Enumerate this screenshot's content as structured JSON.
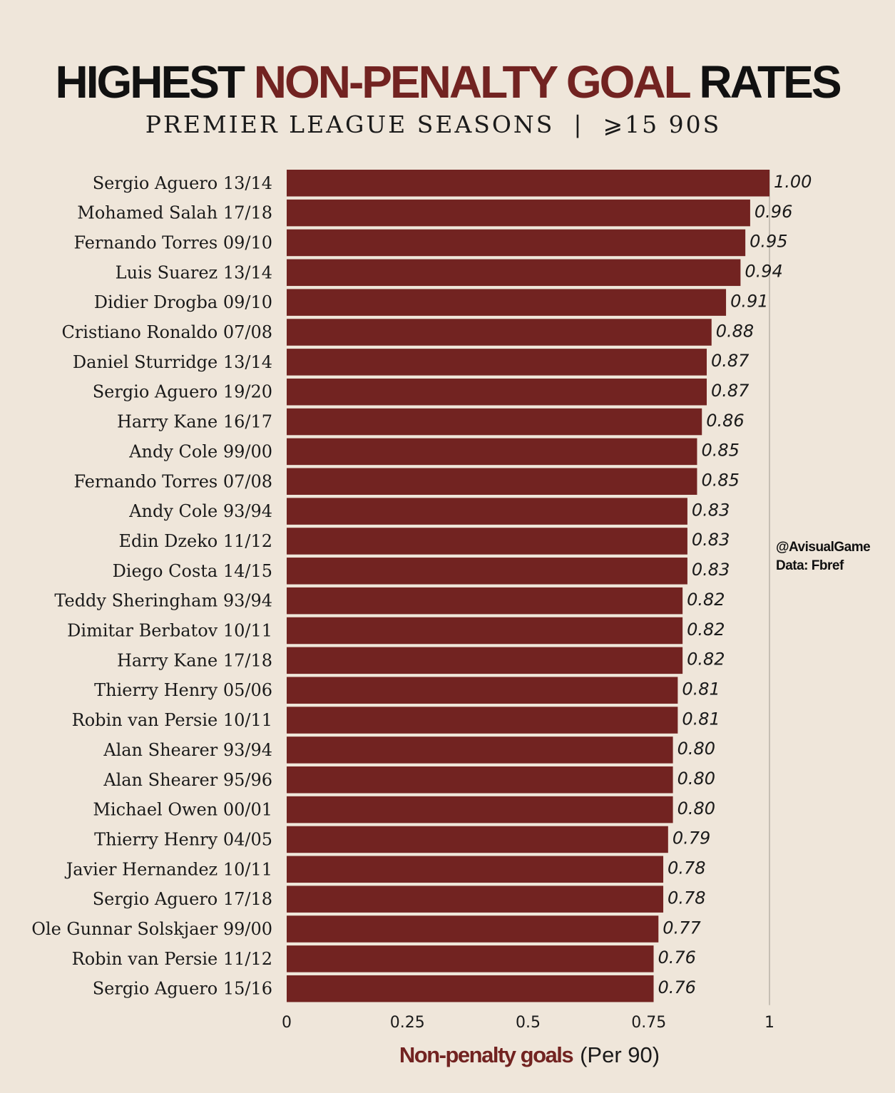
{
  "header": {
    "title_part1": "HIGHEST",
    "title_part2": "NON-PENALTY GOAL",
    "title_part3": "RATES",
    "subtitle": "PREMIER LEAGUE SEASONS  |  ⩾15 90S"
  },
  "credit": {
    "handle": "@AvisualGame",
    "source": "Data: Fbref"
  },
  "axis": {
    "xlabel_main": "Non-penalty goals",
    "xlabel_unit": "(Per 90)"
  },
  "colors": {
    "bar": "#722321",
    "accent": "#722321",
    "background": "#efe6da"
  },
  "chart_data": {
    "type": "bar",
    "orientation": "horizontal",
    "title": "HIGHEST NON-PENALTY GOAL RATES",
    "subtitle": "PREMIER LEAGUE SEASONS | ⩾15 90S",
    "xlabel": "Non-penalty goals (Per 90)",
    "ylabel": "",
    "xlim": [
      0,
      1
    ],
    "xticks": [
      "0",
      "0.25",
      "0.5",
      "0.75",
      "1"
    ],
    "xtick_values": [
      0,
      0.25,
      0.5,
      0.75,
      1
    ],
    "categories": [
      "Sergio Aguero 13/14",
      "Mohamed Salah 17/18",
      "Fernando Torres 09/10",
      "Luis Suarez 13/14",
      "Didier Drogba 09/10",
      "Cristiano Ronaldo 07/08",
      "Daniel Sturridge 13/14",
      "Sergio Aguero 19/20",
      "Harry Kane 16/17",
      "Andy Cole 99/00",
      "Fernando Torres 07/08",
      "Andy Cole 93/94",
      "Edin Dzeko 11/12",
      "Diego Costa 14/15",
      "Teddy Sheringham 93/94",
      "Dimitar Berbatov 10/11",
      "Harry Kane 17/18",
      "Thierry Henry 05/06",
      "Robin van Persie 10/11",
      "Alan Shearer 93/94",
      "Alan Shearer 95/96",
      "Michael Owen 00/01",
      "Thierry Henry 04/05",
      "Javier Hernandez 10/11",
      "Sergio Aguero 17/18",
      "Ole Gunnar Solskjaer 99/00",
      "Robin van Persie 11/12",
      "Sergio Aguero 15/16"
    ],
    "values": [
      1.0,
      0.96,
      0.95,
      0.94,
      0.91,
      0.88,
      0.87,
      0.87,
      0.86,
      0.85,
      0.85,
      0.83,
      0.83,
      0.83,
      0.82,
      0.82,
      0.82,
      0.81,
      0.81,
      0.8,
      0.8,
      0.8,
      0.79,
      0.78,
      0.78,
      0.77,
      0.76,
      0.76
    ],
    "value_labels": [
      "1.00",
      "0.96",
      "0.95",
      "0.94",
      "0.91",
      "0.88",
      "0.87",
      "0.87",
      "0.86",
      "0.85",
      "0.85",
      "0.83",
      "0.83",
      "0.83",
      "0.82",
      "0.82",
      "0.82",
      "0.81",
      "0.81",
      "0.80",
      "0.80",
      "0.80",
      "0.79",
      "0.78",
      "0.78",
      "0.77",
      "0.76",
      "0.76"
    ],
    "grid": false
  }
}
